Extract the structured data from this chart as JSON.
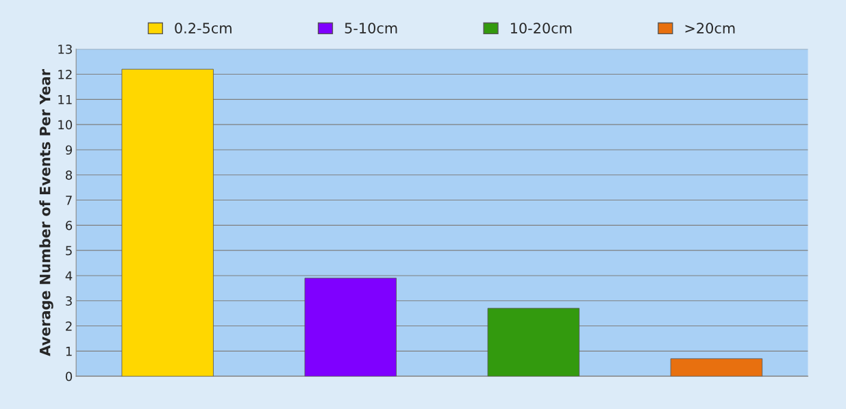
{
  "chart_data": {
    "type": "bar",
    "ylabel": "Average Number of Events Per Year",
    "categories": [
      null,
      null,
      null,
      null
    ],
    "series": [
      {
        "name": "0.2-5cm",
        "color": "#ffd700",
        "values": [
          12.2,
          null,
          null,
          null
        ]
      },
      {
        "name": "5-10cm",
        "color": "#7f00ff",
        "values": [
          null,
          3.9,
          null,
          null
        ]
      },
      {
        "name": "10-20cm",
        "color": "#339a0e",
        "values": [
          null,
          null,
          2.7,
          null
        ]
      },
      {
        "name": ">20cm",
        "color": "#e8700f",
        "values": [
          null,
          null,
          null,
          0.7
        ]
      }
    ],
    "ylim": [
      0,
      13
    ],
    "yticks": [
      0,
      1,
      2,
      3,
      4,
      5,
      6,
      7,
      8,
      9,
      10,
      11,
      12,
      13
    ],
    "grid": "y",
    "legend": "top",
    "tick_labels": "y"
  }
}
